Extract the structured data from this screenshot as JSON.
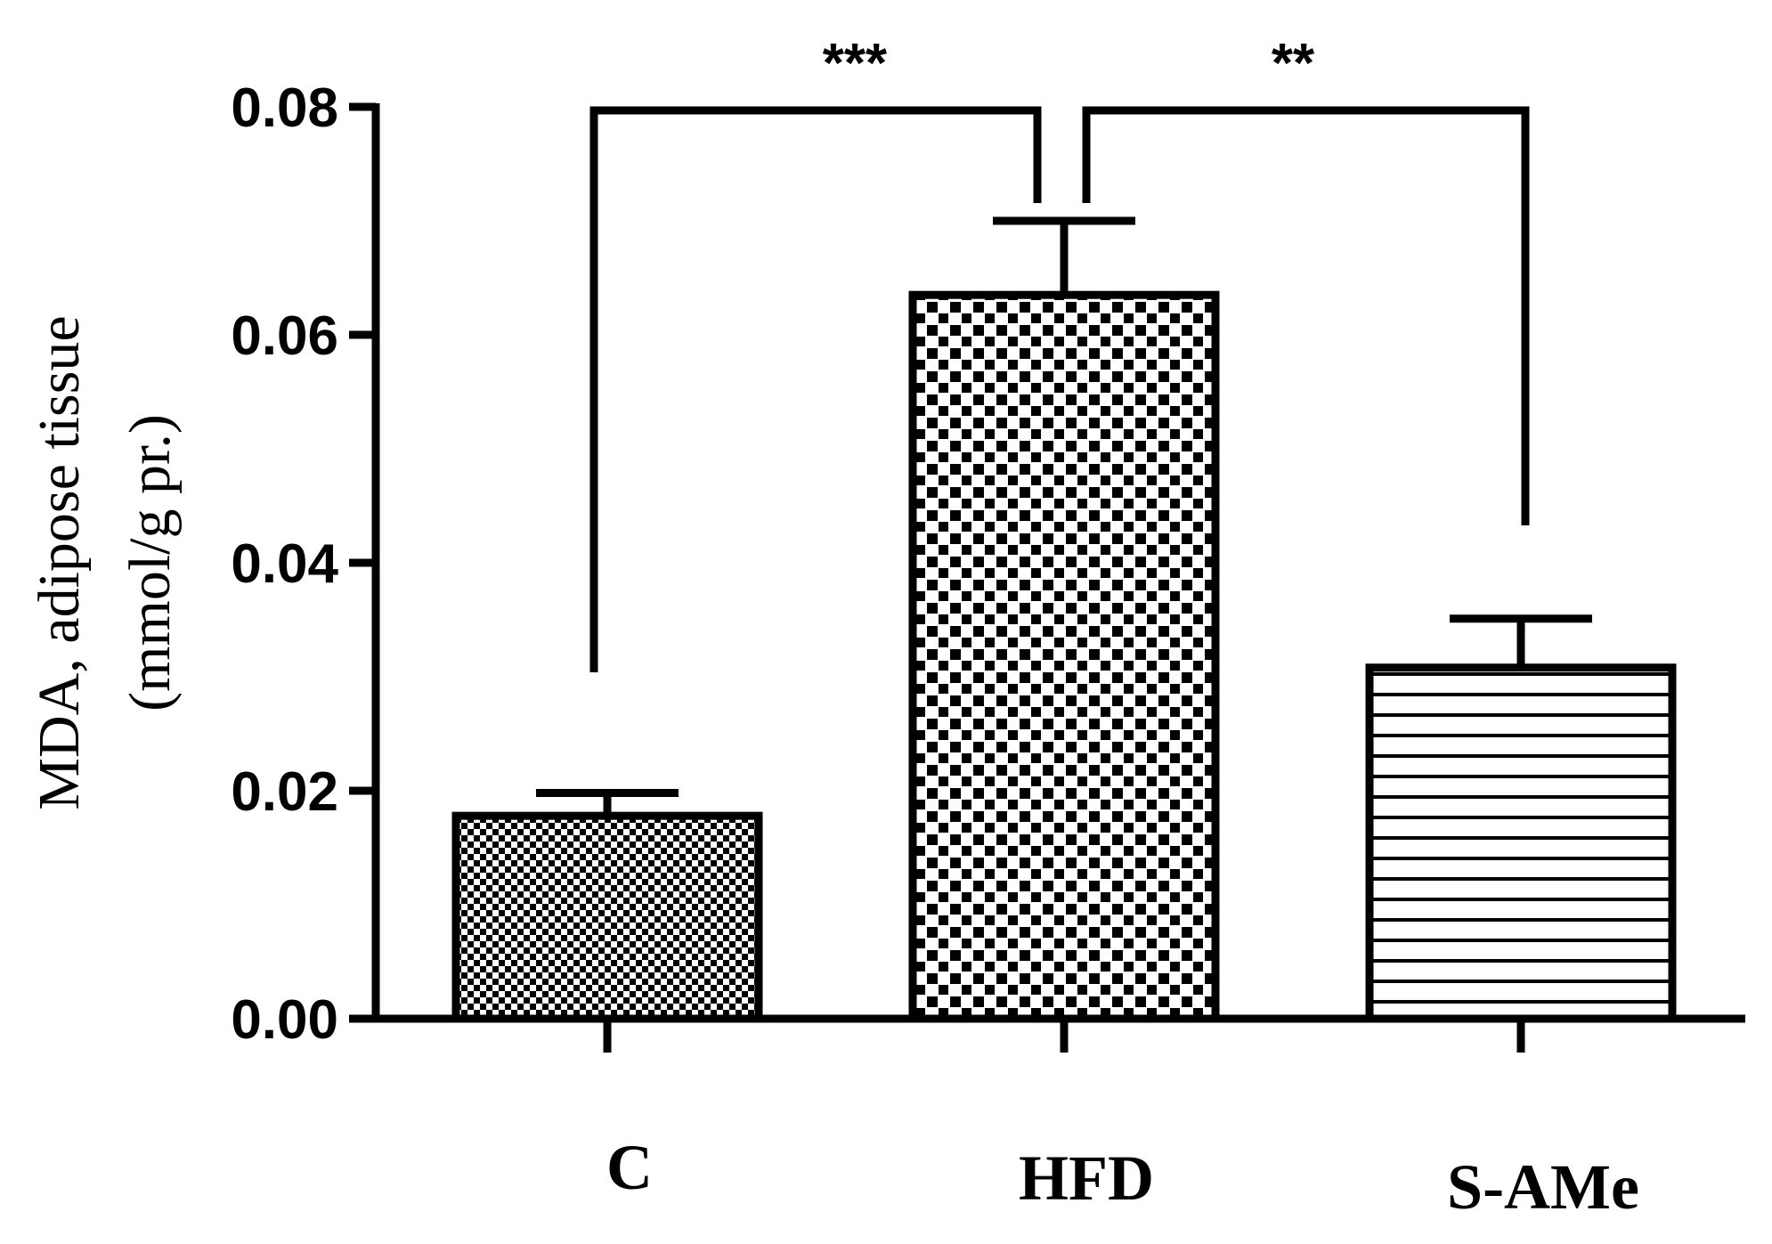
{
  "chart_data": {
    "type": "bar",
    "title": "",
    "xlabel": "",
    "ylabel": [
      "MDA, adipose tissue",
      "(mmol/g pr.)"
    ],
    "categories": [
      "C",
      "HFD",
      "S-AMe"
    ],
    "values": [
      0.0178,
      0.0635,
      0.0308
    ],
    "errors": [
      0.002,
      0.0065,
      0.0043
    ],
    "ylim": [
      0,
      0.08
    ],
    "yticks": [
      0.0,
      0.02,
      0.04,
      0.06,
      0.08
    ],
    "ytick_labels": [
      "0.00",
      "0.02",
      "0.04",
      "0.06",
      "0.08"
    ],
    "bar_patterns": [
      "fine-checker",
      "coarse-checker",
      "horizontal-lines"
    ],
    "grid": false,
    "legend": "none",
    "significance": [
      {
        "from": 0,
        "to": 1,
        "label": "***"
      },
      {
        "from": 1,
        "to": 2,
        "label": "**"
      }
    ]
  }
}
